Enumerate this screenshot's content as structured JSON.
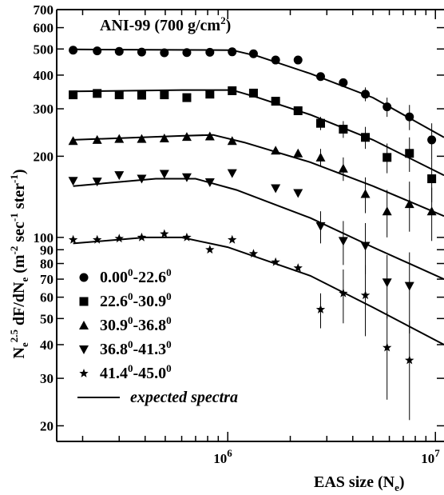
{
  "chart_data": {
    "type": "scatter",
    "title": "ANI-99 (700 g/cm²)",
    "xlabel": "EAS size (Ne)",
    "ylabel": "Ne^2.5 dF/dNe (m^-2 sec^-1 ster^-1)",
    "xlim": [
      150000,
      11000000
    ],
    "ylim": [
      17.5,
      700
    ],
    "xscale": "log",
    "yscale": "log",
    "y_tick_values": [
      20,
      30,
      40,
      50,
      60,
      70,
      80,
      90,
      100,
      200,
      300,
      400,
      500,
      600,
      700
    ],
    "y_tick_labels": [
      "20",
      "30",
      "40",
      "50",
      "60",
      "70",
      "80",
      "90",
      "100",
      "200",
      "300",
      "400",
      "500",
      "600",
      "700"
    ],
    "x_tick_values": [
      1000000,
      10000000
    ],
    "x_tick_labels": [
      {
        "base": "10",
        "exp": "6"
      },
      {
        "base": "10",
        "exp": "7"
      }
    ],
    "legend_position": "bottom-left",
    "series": [
      {
        "name": "0.00⁰-22.6⁰",
        "marker": "circle",
        "points": [
          {
            "x": 180000,
            "y": 495
          },
          {
            "x": 235000,
            "y": 492
          },
          {
            "x": 300000,
            "y": 490
          },
          {
            "x": 385000,
            "y": 487
          },
          {
            "x": 495000,
            "y": 484
          },
          {
            "x": 635000,
            "y": 485
          },
          {
            "x": 820000,
            "y": 486
          },
          {
            "x": 1050000,
            "y": 488
          },
          {
            "x": 1330000,
            "y": 480
          },
          {
            "x": 1700000,
            "y": 455
          },
          {
            "x": 2180000,
            "y": 455
          },
          {
            "x": 2800000,
            "y": 395
          },
          {
            "x": 3600000,
            "y": 375
          },
          {
            "x": 4600000,
            "y": 340,
            "err": 20
          },
          {
            "x": 5850000,
            "y": 305,
            "err": 25
          },
          {
            "x": 7500000,
            "y": 280,
            "err": 30
          },
          {
            "x": 9600000,
            "y": 230,
            "err": 35
          }
        ],
        "fit": [
          [
            180000,
            498
          ],
          [
            1050000,
            495
          ],
          [
            1400000,
            470
          ],
          [
            2500000,
            405
          ],
          [
            5000000,
            330
          ],
          [
            11000000,
            235
          ]
        ]
      },
      {
        "name": "22.6⁰-30.9⁰",
        "marker": "square",
        "points": [
          {
            "x": 180000,
            "y": 338
          },
          {
            "x": 235000,
            "y": 342
          },
          {
            "x": 300000,
            "y": 338
          },
          {
            "x": 385000,
            "y": 337
          },
          {
            "x": 495000,
            "y": 338
          },
          {
            "x": 635000,
            "y": 330
          },
          {
            "x": 820000,
            "y": 340
          },
          {
            "x": 1050000,
            "y": 350
          },
          {
            "x": 1330000,
            "y": 343
          },
          {
            "x": 1700000,
            "y": 320
          },
          {
            "x": 2180000,
            "y": 295
          },
          {
            "x": 2800000,
            "y": 265,
            "err": 15
          },
          {
            "x": 3600000,
            "y": 252,
            "err": 18
          },
          {
            "x": 4600000,
            "y": 235,
            "err": 22
          },
          {
            "x": 5850000,
            "y": 198,
            "err": 25
          },
          {
            "x": 7500000,
            "y": 205,
            "err": 30
          },
          {
            "x": 9600000,
            "y": 165,
            "err": 30
          }
        ],
        "fit": [
          [
            180000,
            348
          ],
          [
            600000,
            352
          ],
          [
            1050000,
            352
          ],
          [
            1400000,
            330
          ],
          [
            2500000,
            285
          ],
          [
            5000000,
            230
          ],
          [
            11000000,
            170
          ]
        ]
      },
      {
        "name": "30.9⁰-36.8⁰",
        "marker": "triangle-up",
        "points": [
          {
            "x": 180000,
            "y": 228
          },
          {
            "x": 235000,
            "y": 230
          },
          {
            "x": 300000,
            "y": 232
          },
          {
            "x": 385000,
            "y": 232
          },
          {
            "x": 495000,
            "y": 233
          },
          {
            "x": 635000,
            "y": 236
          },
          {
            "x": 820000,
            "y": 237
          },
          {
            "x": 1050000,
            "y": 228
          },
          {
            "x": 1700000,
            "y": 210
          },
          {
            "x": 2180000,
            "y": 205
          },
          {
            "x": 2800000,
            "y": 198,
            "err": 15
          },
          {
            "x": 3600000,
            "y": 180,
            "err": 18
          },
          {
            "x": 4600000,
            "y": 145,
            "err": 22
          },
          {
            "x": 5850000,
            "y": 125,
            "err": 25
          },
          {
            "x": 7500000,
            "y": 133,
            "err": 28
          },
          {
            "x": 9600000,
            "y": 125,
            "err": 28
          }
        ],
        "fit": [
          [
            180000,
            230
          ],
          [
            600000,
            238
          ],
          [
            850000,
            240
          ],
          [
            1200000,
            225
          ],
          [
            2500000,
            190
          ],
          [
            5000000,
            155
          ],
          [
            11000000,
            120
          ]
        ]
      },
      {
        "name": "36.8⁰-41.3⁰",
        "marker": "triangle-down",
        "points": [
          {
            "x": 180000,
            "y": 162
          },
          {
            "x": 235000,
            "y": 161
          },
          {
            "x": 300000,
            "y": 170
          },
          {
            "x": 385000,
            "y": 165
          },
          {
            "x": 495000,
            "y": 172
          },
          {
            "x": 635000,
            "y": 167
          },
          {
            "x": 820000,
            "y": 160
          },
          {
            "x": 1050000,
            "y": 173
          },
          {
            "x": 1700000,
            "y": 152
          },
          {
            "x": 2180000,
            "y": 146
          },
          {
            "x": 2800000,
            "y": 110,
            "err": 15
          },
          {
            "x": 3600000,
            "y": 97,
            "err": 18
          },
          {
            "x": 4600000,
            "y": 93,
            "err": 20
          },
          {
            "x": 5850000,
            "y": 68,
            "err": 18
          },
          {
            "x": 7500000,
            "y": 66,
            "err": 22
          }
        ],
        "fit": [
          [
            180000,
            155
          ],
          [
            450000,
            165
          ],
          [
            700000,
            165
          ],
          [
            1100000,
            150
          ],
          [
            2500000,
            118
          ],
          [
            5000000,
            92
          ],
          [
            11000000,
            70
          ]
        ]
      },
      {
        "name": "41.4⁰-45.0⁰",
        "marker": "star",
        "points": [
          {
            "x": 180000,
            "y": 98
          },
          {
            "x": 235000,
            "y": 98
          },
          {
            "x": 300000,
            "y": 99
          },
          {
            "x": 385000,
            "y": 100
          },
          {
            "x": 495000,
            "y": 103
          },
          {
            "x": 635000,
            "y": 100
          },
          {
            "x": 820000,
            "y": 90
          },
          {
            "x": 1050000,
            "y": 98
          },
          {
            "x": 1330000,
            "y": 87
          },
          {
            "x": 1700000,
            "y": 81
          },
          {
            "x": 2180000,
            "y": 77
          },
          {
            "x": 2800000,
            "y": 54,
            "err": 8
          },
          {
            "x": 3600000,
            "y": 62,
            "err": 14
          },
          {
            "x": 4600000,
            "y": 61,
            "err": 18
          },
          {
            "x": 5850000,
            "y": 39,
            "err": 14
          },
          {
            "x": 7500000,
            "y": 35,
            "err": 14
          }
        ],
        "fit": [
          [
            180000,
            95
          ],
          [
            400000,
            100
          ],
          [
            600000,
            100
          ],
          [
            1000000,
            92
          ],
          [
            2500000,
            72
          ],
          [
            5000000,
            55
          ],
          [
            11000000,
            40
          ]
        ]
      }
    ],
    "legend_extra": "expected spectra"
  }
}
